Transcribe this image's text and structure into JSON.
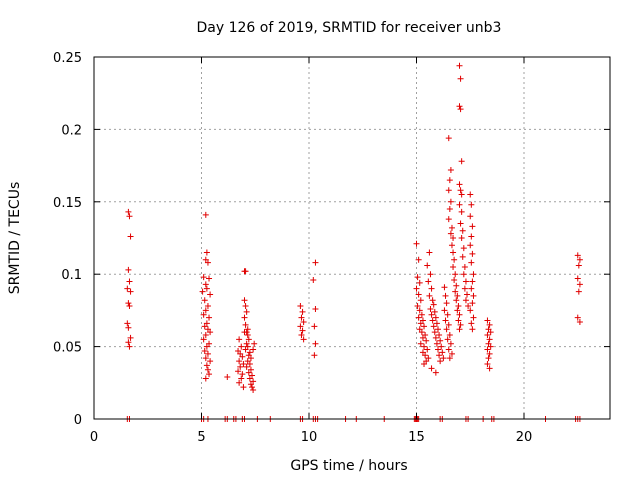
{
  "chart_data": {
    "type": "scatter",
    "title": "Day 126 of 2019, SRMTID for receiver unb3",
    "xlabel": "GPS time / hours",
    "ylabel": "SRMTID / TECUs",
    "xlim": [
      0,
      24
    ],
    "ylim": [
      0,
      0.25
    ],
    "xticks": [
      0,
      5,
      10,
      15,
      20
    ],
    "xtick_labels": [
      "0",
      "5",
      "10",
      "15",
      "20"
    ],
    "yticks": [
      0,
      0.05,
      0.1,
      0.15,
      0.2,
      0.25
    ],
    "ytick_labels": [
      "0",
      "0.05",
      "0.1",
      "0.15",
      "0.2",
      "0.25"
    ],
    "grid": true,
    "marker": "+",
    "color": "#e00000",
    "series": [
      {
        "name": "SRMTID",
        "points": [
          [
            1.6,
            0.143
          ],
          [
            1.65,
            0.14
          ],
          [
            1.7,
            0.126
          ],
          [
            1.6,
            0.103
          ],
          [
            1.65,
            0.095
          ],
          [
            1.55,
            0.09
          ],
          [
            1.7,
            0.088
          ],
          [
            1.6,
            0.08
          ],
          [
            1.65,
            0.078
          ],
          [
            1.55,
            0.066
          ],
          [
            1.6,
            0.063
          ],
          [
            1.7,
            0.056
          ],
          [
            1.6,
            0.053
          ],
          [
            1.65,
            0.05
          ],
          [
            5.2,
            0.141
          ],
          [
            5.25,
            0.115
          ],
          [
            5.2,
            0.11
          ],
          [
            5.3,
            0.108
          ],
          [
            5.1,
            0.098
          ],
          [
            5.35,
            0.097
          ],
          [
            5.2,
            0.093
          ],
          [
            5.25,
            0.09
          ],
          [
            5.05,
            0.088
          ],
          [
            5.4,
            0.086
          ],
          [
            5.15,
            0.082
          ],
          [
            5.3,
            0.078
          ],
          [
            5.2,
            0.075
          ],
          [
            5.1,
            0.072
          ],
          [
            5.35,
            0.07
          ],
          [
            5.25,
            0.066
          ],
          [
            5.15,
            0.064
          ],
          [
            5.3,
            0.062
          ],
          [
            5.4,
            0.06
          ],
          [
            5.2,
            0.058
          ],
          [
            5.1,
            0.055
          ],
          [
            5.35,
            0.052
          ],
          [
            5.25,
            0.05
          ],
          [
            5.15,
            0.047
          ],
          [
            5.3,
            0.045
          ],
          [
            5.2,
            0.042
          ],
          [
            5.4,
            0.04
          ],
          [
            5.25,
            0.037
          ],
          [
            5.3,
            0.034
          ],
          [
            5.35,
            0.031
          ],
          [
            5.2,
            0.028
          ],
          [
            6.2,
            0.029
          ],
          [
            6.75,
            0.055
          ],
          [
            6.85,
            0.05
          ],
          [
            6.7,
            0.047
          ],
          [
            6.8,
            0.045
          ],
          [
            6.9,
            0.043
          ],
          [
            6.75,
            0.04
          ],
          [
            6.95,
            0.038
          ],
          [
            6.8,
            0.036
          ],
          [
            6.7,
            0.033
          ],
          [
            6.9,
            0.031
          ],
          [
            6.85,
            0.028
          ],
          [
            6.75,
            0.025
          ],
          [
            6.95,
            0.022
          ],
          [
            7.0,
            0.102
          ],
          [
            7.05,
            0.102
          ],
          [
            7.0,
            0.082
          ],
          [
            7.05,
            0.078
          ],
          [
            7.1,
            0.074
          ],
          [
            7.0,
            0.07
          ],
          [
            7.05,
            0.065
          ],
          [
            7.1,
            0.06
          ],
          [
            7.15,
            0.058
          ],
          [
            7.2,
            0.055
          ],
          [
            7.1,
            0.052
          ],
          [
            7.15,
            0.05
          ],
          [
            7.05,
            0.048
          ],
          [
            7.25,
            0.046
          ],
          [
            7.2,
            0.044
          ],
          [
            7.3,
            0.042
          ],
          [
            7.15,
            0.04
          ],
          [
            7.25,
            0.038
          ],
          [
            7.1,
            0.036
          ],
          [
            7.3,
            0.034
          ],
          [
            7.2,
            0.032
          ],
          [
            7.35,
            0.03
          ],
          [
            7.25,
            0.028
          ],
          [
            7.4,
            0.026
          ],
          [
            7.3,
            0.024
          ],
          [
            7.35,
            0.022
          ],
          [
            7.4,
            0.02
          ],
          [
            7.45,
            0.052
          ],
          [
            7.4,
            0.048
          ],
          [
            7.0,
            0.06
          ],
          [
            7.15,
            0.062
          ],
          [
            9.6,
            0.078
          ],
          [
            9.7,
            0.074
          ],
          [
            9.65,
            0.07
          ],
          [
            9.75,
            0.067
          ],
          [
            9.6,
            0.064
          ],
          [
            9.7,
            0.061
          ],
          [
            9.65,
            0.058
          ],
          [
            9.75,
            0.055
          ],
          [
            10.3,
            0.108
          ],
          [
            10.2,
            0.096
          ],
          [
            10.3,
            0.076
          ],
          [
            10.25,
            0.064
          ],
          [
            10.3,
            0.052
          ],
          [
            10.25,
            0.044
          ],
          [
            15.0,
            0.121
          ],
          [
            15.1,
            0.11
          ],
          [
            15.05,
            0.098
          ],
          [
            15.15,
            0.094
          ],
          [
            15.0,
            0.09
          ],
          [
            15.1,
            0.086
          ],
          [
            15.2,
            0.082
          ],
          [
            15.05,
            0.078
          ],
          [
            15.15,
            0.075
          ],
          [
            15.25,
            0.072
          ],
          [
            15.1,
            0.07
          ],
          [
            15.3,
            0.068
          ],
          [
            15.2,
            0.066
          ],
          [
            15.35,
            0.064
          ],
          [
            15.15,
            0.062
          ],
          [
            15.25,
            0.06
          ],
          [
            15.4,
            0.058
          ],
          [
            15.3,
            0.056
          ],
          [
            15.45,
            0.054
          ],
          [
            15.2,
            0.052
          ],
          [
            15.35,
            0.05
          ],
          [
            15.5,
            0.048
          ],
          [
            15.3,
            0.046
          ],
          [
            15.4,
            0.044
          ],
          [
            15.55,
            0.042
          ],
          [
            15.45,
            0.04
          ],
          [
            15.35,
            0.038
          ],
          [
            15.6,
            0.115
          ],
          [
            15.5,
            0.106
          ],
          [
            15.65,
            0.1
          ],
          [
            15.55,
            0.095
          ],
          [
            15.7,
            0.09
          ],
          [
            15.6,
            0.085
          ],
          [
            15.75,
            0.082
          ],
          [
            15.8,
            0.079
          ],
          [
            15.65,
            0.076
          ],
          [
            15.85,
            0.074
          ],
          [
            15.7,
            0.072
          ],
          [
            15.9,
            0.07
          ],
          [
            15.75,
            0.068
          ],
          [
            15.95,
            0.066
          ],
          [
            15.8,
            0.064
          ],
          [
            16.0,
            0.062
          ],
          [
            15.85,
            0.06
          ],
          [
            16.05,
            0.058
          ],
          [
            15.9,
            0.056
          ],
          [
            16.1,
            0.054
          ],
          [
            15.95,
            0.052
          ],
          [
            16.15,
            0.05
          ],
          [
            16.0,
            0.048
          ],
          [
            16.2,
            0.046
          ],
          [
            16.05,
            0.044
          ],
          [
            16.25,
            0.042
          ],
          [
            16.1,
            0.04
          ],
          [
            15.7,
            0.035
          ],
          [
            15.9,
            0.032
          ],
          [
            16.3,
            0.091
          ],
          [
            16.35,
            0.085
          ],
          [
            16.4,
            0.08
          ],
          [
            16.3,
            0.075
          ],
          [
            16.45,
            0.072
          ],
          [
            16.35,
            0.068
          ],
          [
            16.5,
            0.065
          ],
          [
            16.4,
            0.062
          ],
          [
            16.55,
            0.058
          ],
          [
            16.45,
            0.055
          ],
          [
            16.6,
            0.052
          ],
          [
            16.5,
            0.048
          ],
          [
            16.65,
            0.045
          ],
          [
            16.55,
            0.042
          ],
          [
            16.5,
            0.194
          ],
          [
            16.6,
            0.172
          ],
          [
            16.55,
            0.165
          ],
          [
            16.5,
            0.158
          ],
          [
            16.6,
            0.15
          ],
          [
            16.55,
            0.145
          ],
          [
            16.5,
            0.138
          ],
          [
            16.65,
            0.132
          ],
          [
            16.6,
            0.128
          ],
          [
            16.7,
            0.125
          ],
          [
            16.65,
            0.12
          ],
          [
            16.7,
            0.115
          ],
          [
            16.75,
            0.11
          ],
          [
            16.7,
            0.105
          ],
          [
            16.8,
            0.1
          ],
          [
            16.75,
            0.096
          ],
          [
            16.85,
            0.092
          ],
          [
            16.8,
            0.088
          ],
          [
            16.9,
            0.085
          ],
          [
            16.85,
            0.082
          ],
          [
            16.95,
            0.078
          ],
          [
            16.9,
            0.075
          ],
          [
            17.0,
            0.072
          ],
          [
            16.95,
            0.068
          ],
          [
            17.05,
            0.065
          ],
          [
            17.0,
            0.062
          ],
          [
            17.0,
            0.244
          ],
          [
            17.05,
            0.235
          ],
          [
            17.0,
            0.216
          ],
          [
            17.05,
            0.214
          ],
          [
            17.1,
            0.178
          ],
          [
            17.0,
            0.162
          ],
          [
            17.05,
            0.158
          ],
          [
            17.1,
            0.155
          ],
          [
            17.0,
            0.148
          ],
          [
            17.1,
            0.143
          ],
          [
            17.05,
            0.135
          ],
          [
            17.15,
            0.13
          ],
          [
            17.1,
            0.125
          ],
          [
            17.2,
            0.118
          ],
          [
            17.15,
            0.112
          ],
          [
            17.25,
            0.105
          ],
          [
            17.2,
            0.1
          ],
          [
            17.3,
            0.095
          ],
          [
            17.25,
            0.09
          ],
          [
            17.35,
            0.086
          ],
          [
            17.3,
            0.082
          ],
          [
            17.4,
            0.078
          ],
          [
            17.5,
            0.155
          ],
          [
            17.55,
            0.148
          ],
          [
            17.5,
            0.14
          ],
          [
            17.6,
            0.133
          ],
          [
            17.55,
            0.126
          ],
          [
            17.5,
            0.12
          ],
          [
            17.6,
            0.114
          ],
          [
            17.55,
            0.108
          ],
          [
            17.65,
            0.1
          ],
          [
            17.6,
            0.095
          ],
          [
            17.55,
            0.09
          ],
          [
            17.65,
            0.085
          ],
          [
            17.6,
            0.08
          ],
          [
            17.5,
            0.075
          ],
          [
            17.65,
            0.07
          ],
          [
            17.55,
            0.066
          ],
          [
            17.6,
            0.062
          ],
          [
            18.3,
            0.068
          ],
          [
            18.4,
            0.065
          ],
          [
            18.35,
            0.062
          ],
          [
            18.45,
            0.06
          ],
          [
            18.3,
            0.058
          ],
          [
            18.4,
            0.055
          ],
          [
            18.35,
            0.052
          ],
          [
            18.45,
            0.05
          ],
          [
            18.3,
            0.048
          ],
          [
            18.4,
            0.045
          ],
          [
            18.35,
            0.042
          ],
          [
            18.3,
            0.038
          ],
          [
            18.4,
            0.035
          ],
          [
            22.5,
            0.113
          ],
          [
            22.6,
            0.11
          ],
          [
            22.55,
            0.106
          ],
          [
            22.5,
            0.097
          ],
          [
            22.6,
            0.093
          ],
          [
            22.55,
            0.088
          ],
          [
            22.5,
            0.07
          ],
          [
            22.6,
            0.067
          ],
          [
            1.55,
            0.0
          ],
          [
            1.65,
            0.0
          ],
          [
            5.0,
            0.0
          ],
          [
            5.1,
            0.0
          ],
          [
            5.3,
            0.0
          ],
          [
            6.1,
            0.0
          ],
          [
            6.2,
            0.0
          ],
          [
            6.5,
            0.0
          ],
          [
            6.6,
            0.0
          ],
          [
            6.9,
            0.0
          ],
          [
            7.0,
            0.0
          ],
          [
            7.6,
            0.0
          ],
          [
            8.2,
            0.0
          ],
          [
            9.6,
            0.0
          ],
          [
            9.7,
            0.0
          ],
          [
            10.2,
            0.0
          ],
          [
            10.3,
            0.0
          ],
          [
            10.4,
            0.0
          ],
          [
            11.7,
            0.0
          ],
          [
            12.2,
            0.0
          ],
          [
            13.5,
            0.0
          ],
          [
            14.9,
            0.0
          ],
          [
            14.95,
            0.0
          ],
          [
            15.0,
            0.0
          ],
          [
            15.05,
            0.0
          ],
          [
            15.1,
            0.0
          ],
          [
            16.1,
            0.0
          ],
          [
            16.2,
            0.0
          ],
          [
            17.3,
            0.0
          ],
          [
            17.4,
            0.0
          ],
          [
            18.1,
            0.0
          ],
          [
            18.5,
            0.0
          ],
          [
            18.6,
            0.0
          ],
          [
            21.0,
            0.0
          ],
          [
            22.4,
            0.0
          ],
          [
            22.5,
            0.0
          ],
          [
            22.6,
            0.0
          ]
        ]
      }
    ]
  }
}
